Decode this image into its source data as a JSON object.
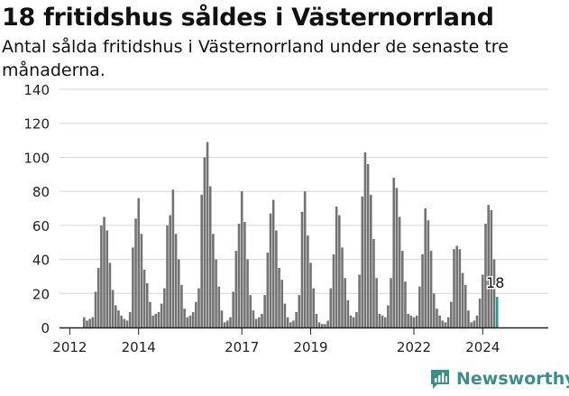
{
  "title": "18 fritidshus såldes i Västernorrland",
  "subtitle": "Antal sålda fritidshus i Västernorrland under de senaste tre månaderna.",
  "brand": {
    "name": "Newsworthy"
  },
  "colors": {
    "bar": "#737373",
    "highlight": "#2b9a98",
    "grid": "#d6d6d6",
    "axis": "#222222"
  },
  "chart_data": {
    "type": "bar",
    "title": "18 fritidshus såldes i Västernorrland",
    "subtitle": "Antal sålda fritidshus i Västernorrland under de senaste tre månaderna.",
    "xlabel": "",
    "ylabel": "",
    "ylim": [
      0,
      140
    ],
    "yticks": [
      0,
      20,
      40,
      60,
      80,
      100,
      120,
      140
    ],
    "xtick_labels": [
      "2012",
      "2014",
      "2017",
      "2019",
      "2022",
      "2024"
    ],
    "grid": true,
    "legend": "none",
    "series": [
      {
        "values": [
          6,
          4,
          5,
          6,
          21,
          35,
          60,
          65,
          57,
          38,
          22,
          13,
          10,
          7,
          5,
          4,
          9,
          47,
          64,
          76,
          55,
          34,
          26,
          15,
          7,
          8,
          9,
          14,
          23,
          60,
          66,
          81,
          55,
          40,
          25,
          11,
          6,
          7,
          9,
          15,
          23,
          78,
          100,
          109,
          83,
          55,
          40,
          24,
          10,
          3,
          4,
          6,
          21,
          45,
          61,
          80,
          62,
          40,
          19,
          10,
          5,
          6,
          8,
          19,
          44,
          67,
          75,
          57,
          35,
          28,
          14,
          6,
          3,
          4,
          9,
          19,
          68,
          80,
          54,
          38,
          23,
          8,
          3,
          2,
          2,
          4,
          23,
          43,
          71,
          66,
          47,
          29,
          16,
          7,
          6,
          9,
          31,
          77,
          103,
          96,
          78,
          52,
          29,
          8,
          7,
          6,
          13,
          29,
          88,
          82,
          65,
          45,
          27,
          8,
          7,
          6,
          7,
          24,
          43,
          70,
          63,
          45,
          20,
          11,
          7,
          4,
          3,
          6,
          15,
          46,
          48,
          46,
          32,
          25,
          10,
          3,
          4,
          7,
          17,
          31,
          61,
          72,
          69,
          40,
          18
        ]
      }
    ],
    "annotation": {
      "label": "18"
    }
  }
}
